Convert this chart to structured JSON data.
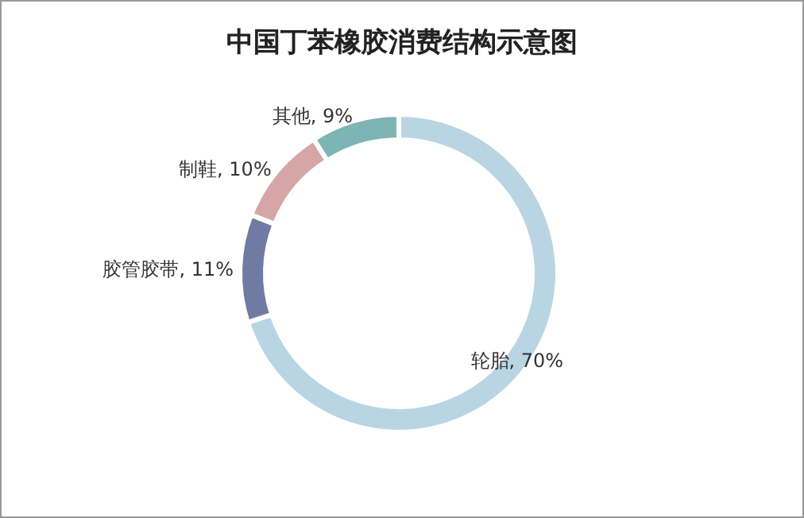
{
  "chart_data": {
    "type": "donut",
    "title": "中国丁苯橡胶消费结构示意图",
    "categories": [
      "轮胎",
      "胶管胶带",
      "制鞋",
      "其他"
    ],
    "values": [
      70,
      11,
      10,
      9
    ],
    "value_labels": [
      "70%",
      "11%",
      "10%",
      "9%"
    ],
    "colors": [
      "#b9d5e4",
      "#6f7ba3",
      "#d6a6a6",
      "#7db4b4"
    ]
  }
}
